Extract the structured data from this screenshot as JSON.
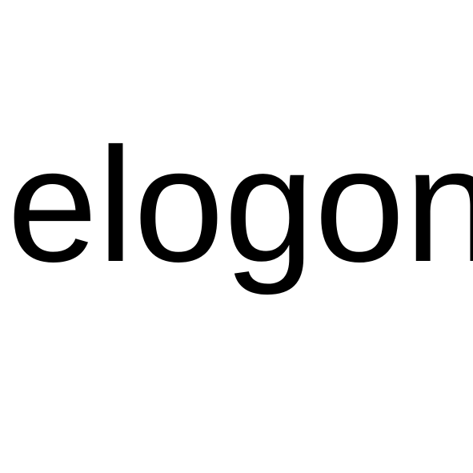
{
  "word": {
    "text": "elogon",
    "color": "#000000"
  },
  "background": {
    "color": "#ffffff"
  }
}
